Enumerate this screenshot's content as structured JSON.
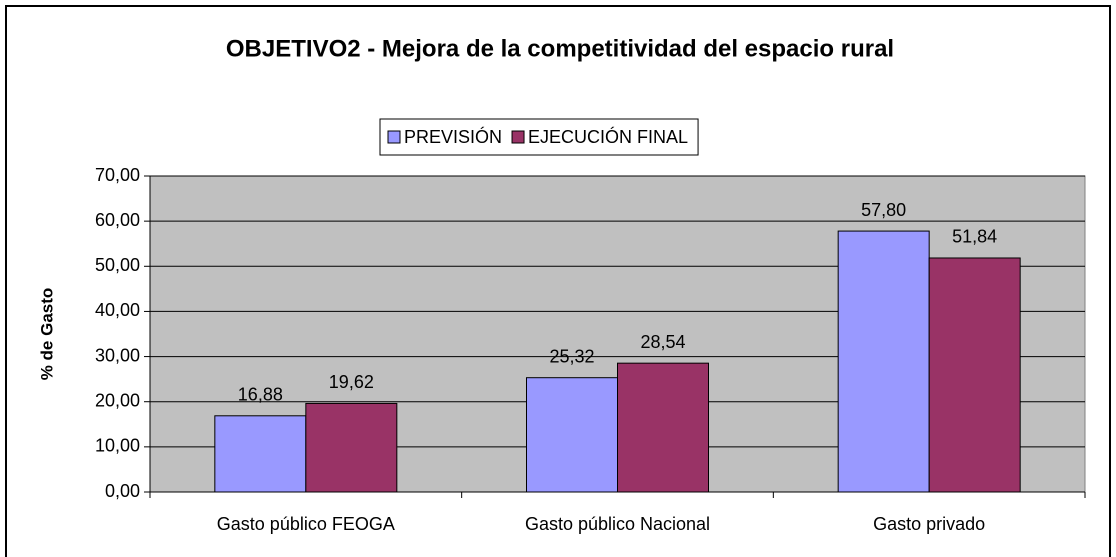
{
  "chart_data": {
    "type": "bar",
    "title": "OBJETIVO2 - Mejora de la competitividad del espacio rural",
    "ylabel": "% de Gasto",
    "categories": [
      "Gasto público FEOGA",
      "Gasto público Nacional",
      "Gasto privado"
    ],
    "series": [
      {
        "name": "PREVISIÓN",
        "color": "#9999ff",
        "values": [
          16.88,
          25.32,
          57.8
        ],
        "value_labels": [
          "16,88",
          "25,32",
          "57,80"
        ]
      },
      {
        "name": "EJECUCIÓN FINAL",
        "color": "#993366",
        "values": [
          19.62,
          28.54,
          51.84
        ],
        "value_labels": [
          "19,62",
          "28,54",
          "51,84"
        ]
      }
    ],
    "ylim": [
      0,
      70
    ],
    "yticks": [
      {
        "value": 0,
        "label": "0,00"
      },
      {
        "value": 10,
        "label": "10,00"
      },
      {
        "value": 20,
        "label": "20,00"
      },
      {
        "value": 30,
        "label": "30,00"
      },
      {
        "value": 40,
        "label": "40,00"
      },
      {
        "value": 50,
        "label": "50,00"
      },
      {
        "value": 60,
        "label": "60,00"
      },
      {
        "value": 70,
        "label": "70,00"
      }
    ],
    "grid": true,
    "legend": "top",
    "plot_background": "#c0c0c0"
  }
}
